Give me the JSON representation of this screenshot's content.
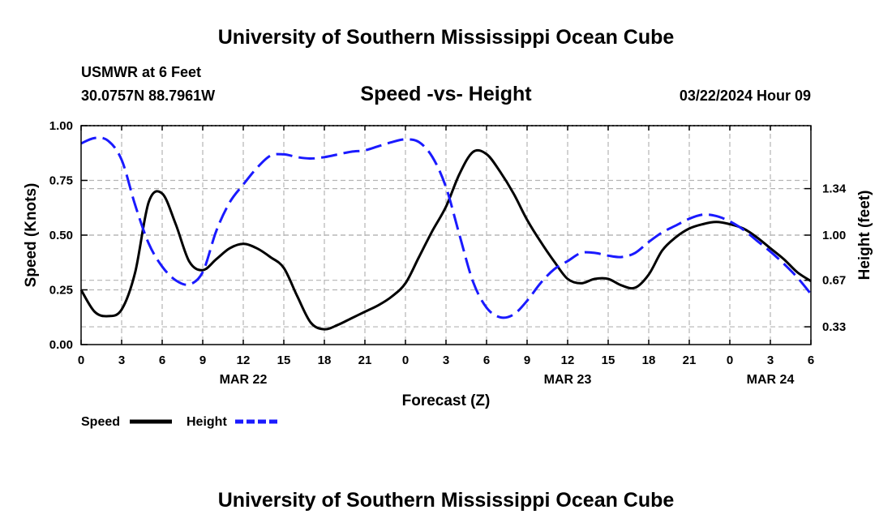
{
  "header": {
    "title_top": "University of Southern Mississippi Ocean Cube",
    "title_bottom": "University of Southern Mississippi Ocean Cube",
    "station": "USMWR at 6 Feet",
    "coords": "30.0757N  88.7961W",
    "chart_title": "Speed -vs- Height",
    "datetime": "03/22/2024 Hour 09"
  },
  "legend": {
    "speed_label": "Speed",
    "height_label": "Height"
  },
  "chart_data": {
    "type": "line",
    "title": "Speed -vs- Height",
    "xlabel": "Forecast (Z)",
    "ylabel": "Speed (Knots)",
    "y2label": "Height (feet)",
    "xlim": [
      0,
      54
    ],
    "ylim": [
      0,
      1
    ],
    "y2lim": [
      0.2,
      1.8
    ],
    "x_ticks": [
      0,
      3,
      6,
      9,
      12,
      15,
      18,
      21,
      24,
      27,
      30,
      33,
      36,
      39,
      42,
      45,
      48,
      51,
      54
    ],
    "x_tick_labels": [
      "0",
      "3",
      "6",
      "9",
      "12",
      "15",
      "18",
      "21",
      "0",
      "3",
      "6",
      "9",
      "12",
      "15",
      "18",
      "21",
      "0",
      "3",
      "6"
    ],
    "date_labels": [
      {
        "x": 12,
        "label": "MAR 22"
      },
      {
        "x": 36,
        "label": "MAR 23"
      },
      {
        "x": 51,
        "label": "MAR 24"
      }
    ],
    "y_ticks": [
      0,
      0.25,
      0.5,
      0.75,
      1.0
    ],
    "y_tick_labels": [
      "0.00",
      "0.25",
      "0.50",
      "0.75",
      "1.00"
    ],
    "y2_ticks": [
      0.33,
      0.67,
      1.0,
      1.34
    ],
    "y2_tick_labels": [
      "0.33",
      "0.67",
      "1.00",
      "1.34"
    ],
    "grid": true,
    "series": [
      {
        "name": "Speed",
        "axis": "left",
        "color": "#000000",
        "style": "solid",
        "x": [
          0,
          1,
          2,
          3,
          4,
          5,
          6,
          7,
          8,
          9,
          10,
          11,
          12,
          13,
          14,
          15,
          16,
          17,
          18,
          19,
          20,
          21,
          22,
          23,
          24,
          25,
          26,
          27,
          28,
          29,
          30,
          31,
          32,
          33,
          34,
          35,
          36,
          37,
          38,
          39,
          40,
          41,
          42,
          43,
          44,
          45,
          46,
          47,
          48,
          49,
          50,
          51,
          52,
          53,
          54
        ],
        "values": [
          0.25,
          0.15,
          0.13,
          0.16,
          0.33,
          0.65,
          0.69,
          0.55,
          0.38,
          0.34,
          0.39,
          0.44,
          0.46,
          0.44,
          0.4,
          0.35,
          0.22,
          0.1,
          0.07,
          0.09,
          0.12,
          0.15,
          0.18,
          0.22,
          0.28,
          0.4,
          0.52,
          0.63,
          0.78,
          0.88,
          0.87,
          0.79,
          0.69,
          0.57,
          0.47,
          0.38,
          0.3,
          0.28,
          0.3,
          0.3,
          0.27,
          0.26,
          0.32,
          0.43,
          0.49,
          0.53,
          0.55,
          0.56,
          0.55,
          0.53,
          0.49,
          0.44,
          0.39,
          0.33,
          0.29
        ]
      },
      {
        "name": "Height",
        "axis": "right",
        "color": "#1a1aff",
        "style": "dashed",
        "x": [
          0,
          1,
          2,
          3,
          4,
          5,
          6,
          7,
          8,
          9,
          10,
          11,
          12,
          13,
          14,
          15,
          16,
          17,
          18,
          19,
          20,
          21,
          22,
          23,
          24,
          25,
          26,
          27,
          28,
          29,
          30,
          31,
          32,
          33,
          34,
          35,
          36,
          37,
          38,
          39,
          40,
          41,
          42,
          43,
          44,
          45,
          46,
          47,
          48,
          49,
          50,
          51,
          52,
          53,
          54
        ],
        "values": [
          1.67,
          1.71,
          1.69,
          1.55,
          1.22,
          0.94,
          0.77,
          0.67,
          0.64,
          0.73,
          1.03,
          1.24,
          1.37,
          1.49,
          1.58,
          1.59,
          1.57,
          1.56,
          1.57,
          1.59,
          1.61,
          1.62,
          1.65,
          1.68,
          1.7,
          1.68,
          1.57,
          1.35,
          1.0,
          0.66,
          0.47,
          0.4,
          0.42,
          0.52,
          0.65,
          0.75,
          0.81,
          0.87,
          0.87,
          0.85,
          0.84,
          0.87,
          0.95,
          1.02,
          1.07,
          1.12,
          1.15,
          1.14,
          1.1,
          1.04,
          0.96,
          0.88,
          0.79,
          0.69,
          0.57
        ]
      }
    ]
  }
}
